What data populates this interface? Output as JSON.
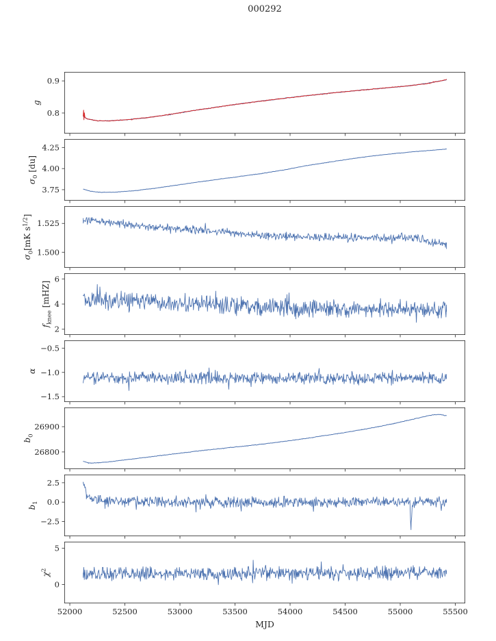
{
  "chart_data": {
    "type": "line",
    "title": "000292",
    "xlabel": "MJD",
    "xlim": [
      51950,
      55590
    ],
    "xticks": [
      52000,
      52500,
      53000,
      53500,
      54000,
      54500,
      55000,
      55500
    ],
    "xticklabels": [
      "52000",
      "52500",
      "53000",
      "53500",
      "54000",
      "54500",
      "55000",
      "55500"
    ],
    "frame_color": "#262626",
    "text_color": "#262626",
    "legend": "none",
    "grid": false,
    "subplots": [
      {
        "id": "g",
        "ylabel": [
          {
            "t": "g",
            "it": true
          }
        ],
        "ylim": [
          0.736,
          0.928
        ],
        "yticks": [
          0.8,
          0.9
        ],
        "yticklabels": [
          "0.8",
          "0.9"
        ],
        "series": [
          {
            "name": "gain-model",
            "color": "#4c72b0",
            "lw": 1.1,
            "noise": 0.001,
            "n": 480,
            "seed": 11,
            "trend": [
              [
                52122,
                0.7895
              ],
              [
                52160,
                0.7815
              ],
              [
                52250,
                0.7757
              ],
              [
                52360,
                0.7757
              ],
              [
                52520,
                0.779
              ],
              [
                52700,
                0.7855
              ],
              [
                52900,
                0.795
              ],
              [
                53100,
                0.8065
              ],
              [
                53300,
                0.8165
              ],
              [
                53500,
                0.8265
              ],
              [
                53700,
                0.8355
              ],
              [
                53900,
                0.844
              ],
              [
                54100,
                0.852
              ],
              [
                54300,
                0.8595
              ],
              [
                54500,
                0.8665
              ],
              [
                54700,
                0.873
              ],
              [
                54900,
                0.879
              ],
              [
                55100,
                0.8855
              ],
              [
                55250,
                0.8925
              ],
              [
                55350,
                0.899
              ],
              [
                55420,
                0.9035
              ]
            ]
          },
          {
            "name": "gain-data",
            "color": "#d62728",
            "lw": 1.0,
            "noise": 0.0013,
            "n": 480,
            "seed": 12,
            "trend": [
              [
                52122,
                0.7905
              ],
              [
                52125,
                0.8085
              ],
              [
                52128,
                0.779
              ],
              [
                52132,
                0.8
              ],
              [
                52137,
                0.7875
              ],
              [
                52145,
                0.7845
              ],
              [
                52160,
                0.782
              ],
              [
                52250,
                0.7757
              ],
              [
                52360,
                0.7757
              ],
              [
                52520,
                0.779
              ],
              [
                52700,
                0.7855
              ],
              [
                52900,
                0.795
              ],
              [
                53100,
                0.8065
              ],
              [
                53300,
                0.8165
              ],
              [
                53500,
                0.8265
              ],
              [
                53700,
                0.8355
              ],
              [
                53900,
                0.844
              ],
              [
                54100,
                0.852
              ],
              [
                54300,
                0.8595
              ],
              [
                54500,
                0.8665
              ],
              [
                54700,
                0.873
              ],
              [
                54900,
                0.879
              ],
              [
                55100,
                0.8855
              ],
              [
                55250,
                0.8925
              ],
              [
                55350,
                0.899
              ],
              [
                55420,
                0.9045
              ]
            ]
          }
        ]
      },
      {
        "id": "sigma0-du",
        "ylabel": [
          {
            "t": "σ",
            "it": true
          },
          {
            "t": "0",
            "pos": "sub"
          },
          {
            "t": " [du]"
          }
        ],
        "ylim": [
          3.62,
          4.35
        ],
        "yticks": [
          3.75,
          4.0,
          4.25
        ],
        "yticklabels": [
          "3.75",
          "4.00",
          "4.25"
        ],
        "series": [
          {
            "name": "sigma0-du",
            "color": "#4c72b0",
            "lw": 1.0,
            "noise": 0.003,
            "n": 480,
            "seed": 21,
            "trend": [
              [
                52122,
                3.757
              ],
              [
                52190,
                3.731
              ],
              [
                52290,
                3.718
              ],
              [
                52420,
                3.721
              ],
              [
                52580,
                3.737
              ],
              [
                52760,
                3.765
              ],
              [
                52950,
                3.8
              ],
              [
                53150,
                3.838
              ],
              [
                53350,
                3.873
              ],
              [
                53550,
                3.908
              ],
              [
                53750,
                3.943
              ],
              [
                53950,
                3.985
              ],
              [
                54150,
                4.035
              ],
              [
                54350,
                4.075
              ],
              [
                54550,
                4.115
              ],
              [
                54750,
                4.15
              ],
              [
                54950,
                4.178
              ],
              [
                55150,
                4.203
              ],
              [
                55300,
                4.218
              ],
              [
                55420,
                4.232
              ]
            ]
          }
        ]
      },
      {
        "id": "sigma0-mks",
        "ylabel": [
          {
            "t": "σ",
            "it": true
          },
          {
            "t": "0",
            "pos": "sub"
          },
          {
            "t": "[mK s"
          },
          {
            "t": "1/2",
            "pos": "sup"
          },
          {
            "t": "]"
          }
        ],
        "ylim": [
          1.4865,
          1.54
        ],
        "yticks": [
          1.5,
          1.525
        ],
        "yticklabels": [
          "1.500",
          "1.525"
        ],
        "series": [
          {
            "name": "sigma0-mks",
            "color": "#4c72b0",
            "lw": 0.9,
            "noise": 0.0042,
            "n": 700,
            "seed": 31,
            "trend": [
              [
                52122,
                1.5275
              ],
              [
                52300,
                1.527
              ],
              [
                52600,
                1.5235
              ],
              [
                52900,
                1.521
              ],
              [
                53200,
                1.5185
              ],
              [
                53500,
                1.5165
              ],
              [
                53800,
                1.5145
              ],
              [
                54100,
                1.513
              ],
              [
                54400,
                1.5125
              ],
              [
                54700,
                1.512
              ],
              [
                55000,
                1.513
              ],
              [
                55200,
                1.512
              ],
              [
                55420,
                1.506
              ]
            ]
          }
        ]
      },
      {
        "id": "fknee",
        "ylabel": [
          {
            "t": "f",
            "it": true
          },
          {
            "t": "knee",
            "pos": "sub"
          },
          {
            "t": " [mHZ]"
          }
        ],
        "ylim": [
          1.55,
          6.45
        ],
        "yticks": [
          2,
          4,
          6
        ],
        "yticklabels": [
          "2",
          "4",
          "6"
        ],
        "series": [
          {
            "name": "fknee",
            "color": "#4c72b0",
            "lw": 0.9,
            "noise": 0.85,
            "n": 700,
            "seed": 41,
            "trend": [
              [
                52122,
                4.35
              ],
              [
                52500,
                4.3
              ],
              [
                52900,
                4.1
              ],
              [
                53300,
                3.95
              ],
              [
                53700,
                3.8
              ],
              [
                54100,
                3.7
              ],
              [
                54500,
                3.62
              ],
              [
                54900,
                3.6
              ],
              [
                55420,
                3.5
              ]
            ]
          }
        ]
      },
      {
        "id": "alpha",
        "ylabel": [
          {
            "t": "α",
            "it": true
          }
        ],
        "ylim": [
          -1.61,
          -0.34
        ],
        "yticks": [
          -1.5,
          -1.0,
          -0.5
        ],
        "yticklabels": [
          "−1.5",
          "−1.0",
          "−0.5"
        ],
        "series": [
          {
            "name": "alpha",
            "color": "#4c72b0",
            "lw": 0.9,
            "noise": 0.15,
            "n": 700,
            "seed": 51,
            "trend": [
              [
                52122,
                -1.105
              ],
              [
                53500,
                -1.12
              ],
              [
                55420,
                -1.125
              ]
            ]
          }
        ]
      },
      {
        "id": "b0",
        "ylabel": [
          {
            "t": "b",
            "it": true
          },
          {
            "t": "0",
            "pos": "sub"
          }
        ],
        "ylim": [
          26732,
          26976
        ],
        "yticks": [
          26800,
          26900
        ],
        "yticklabels": [
          "26800",
          "26900"
        ],
        "series": [
          {
            "name": "b0",
            "color": "#4c72b0",
            "lw": 1.0,
            "noise": 1.3,
            "n": 480,
            "seed": 61,
            "trend": [
              [
                52122,
                26763
              ],
              [
                52170,
                26756
              ],
              [
                52260,
                26757
              ],
              [
                52400,
                26763
              ],
              [
                52550,
                26771
              ],
              [
                52700,
                26779
              ],
              [
                52850,
                26787
              ],
              [
                53000,
                26795
              ],
              [
                53150,
                26803
              ],
              [
                53300,
                26810
              ],
              [
                53450,
                26817
              ],
              [
                53600,
                26824
              ],
              [
                53750,
                26831
              ],
              [
                53900,
                26839
              ],
              [
                54050,
                26848
              ],
              [
                54200,
                26857
              ],
              [
                54350,
                26867
              ],
              [
                54500,
                26877
              ],
              [
                54650,
                26888
              ],
              [
                54800,
                26900
              ],
              [
                54950,
                26913
              ],
              [
                55100,
                26928
              ],
              [
                55220,
                26940
              ],
              [
                55300,
                26947
              ],
              [
                55360,
                26948
              ],
              [
                55420,
                26944
              ]
            ]
          }
        ]
      },
      {
        "id": "b1",
        "ylabel": [
          {
            "t": "b",
            "it": true
          },
          {
            "t": "1",
            "pos": "sub"
          }
        ],
        "ylim": [
          -4.4,
          3.55
        ],
        "yticks": [
          -2.5,
          0.0,
          2.5
        ],
        "yticklabels": [
          "−2.5",
          "0.0",
          "2.5"
        ],
        "series": [
          {
            "name": "b1",
            "color": "#4c72b0",
            "lw": 0.9,
            "noise": 0.8,
            "n": 700,
            "seed": 71,
            "trend": [
              [
                52122,
                2.45
              ],
              [
                52150,
                1.15
              ],
              [
                52210,
                0.4
              ],
              [
                52320,
                0.12
              ],
              [
                52500,
                0.02
              ],
              [
                54000,
                0.0
              ],
              [
                55060,
                0.05
              ],
              [
                55088,
                -0.1
              ],
              [
                55098,
                -3.25
              ],
              [
                55112,
                0.0
              ],
              [
                55250,
                0.1
              ],
              [
                55420,
                0.05
              ]
            ]
          }
        ]
      },
      {
        "id": "chi2",
        "ylabel": [
          {
            "t": "χ",
            "it": true
          },
          {
            "t": "2",
            "pos": "sup"
          }
        ],
        "ylim": [
          -2.6,
          5.9
        ],
        "yticks": [
          0,
          5
        ],
        "yticklabels": [
          "0",
          "5"
        ],
        "series": [
          {
            "name": "chi2",
            "color": "#4c72b0",
            "lw": 0.9,
            "noise": 1.1,
            "n": 700,
            "seed": 81,
            "trend": [
              [
                52122,
                1.45
              ],
              [
                53500,
                1.5
              ],
              [
                55420,
                1.6
              ]
            ]
          }
        ]
      }
    ]
  }
}
